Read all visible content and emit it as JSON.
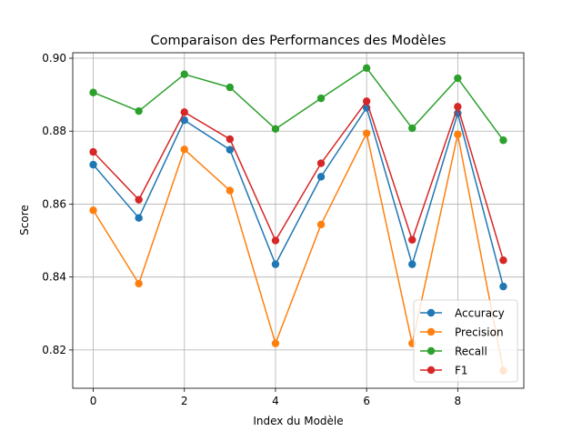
{
  "chart_data": {
    "type": "line",
    "title": "Comparaison des Performances des Modèles",
    "xlabel": "Index du Modèle",
    "ylabel": "Score",
    "x": [
      0,
      1,
      2,
      3,
      4,
      5,
      6,
      7,
      8,
      9
    ],
    "xlim": [
      -0.45,
      9.45
    ],
    "ylim": [
      0.8095,
      0.9015
    ],
    "x_ticks": [
      0,
      2,
      4,
      6,
      8
    ],
    "x_tick_labels": [
      "0",
      "2",
      "4",
      "6",
      "8"
    ],
    "y_ticks": [
      0.82,
      0.84,
      0.86,
      0.88,
      0.9
    ],
    "y_tick_labels": [
      "0.82",
      "0.84",
      "0.86",
      "0.88",
      "0.90"
    ],
    "grid": true,
    "legend_position": "lower-right",
    "series": [
      {
        "name": "Accuracy",
        "color": "#1f77b4",
        "values": [
          0.8708,
          0.8562,
          0.883,
          0.8749,
          0.8435,
          0.8675,
          0.8864,
          0.8435,
          0.8849,
          0.8374
        ]
      },
      {
        "name": "Precision",
        "color": "#ff7f0e",
        "values": [
          0.8583,
          0.8382,
          0.875,
          0.8637,
          0.8218,
          0.8544,
          0.8794,
          0.8218,
          0.8791,
          0.8143
        ]
      },
      {
        "name": "Recall",
        "color": "#2ca02c",
        "values": [
          0.8906,
          0.8855,
          0.8956,
          0.892,
          0.8806,
          0.889,
          0.8973,
          0.8808,
          0.8945,
          0.8775
        ]
      },
      {
        "name": "F1",
        "color": "#d62728",
        "values": [
          0.8743,
          0.8612,
          0.8852,
          0.8778,
          0.85,
          0.8712,
          0.8882,
          0.8502,
          0.8867,
          0.8446
        ]
      }
    ]
  }
}
